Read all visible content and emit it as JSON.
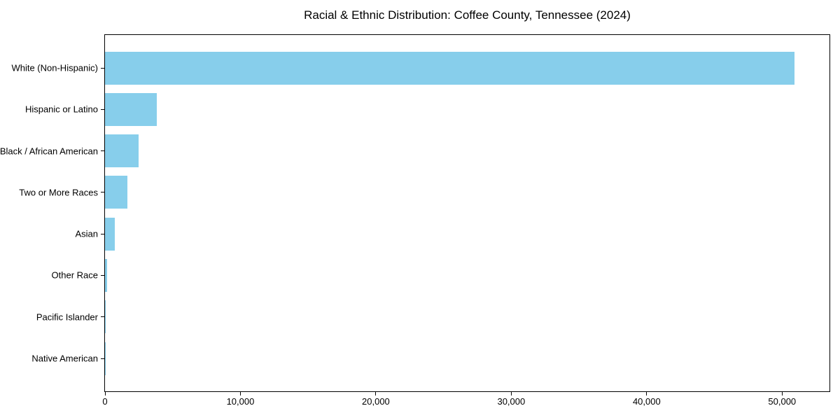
{
  "chart_data": {
    "type": "bar",
    "orientation": "horizontal",
    "title": "Racial & Ethnic Distribution: Coffee County, Tennessee (2024)",
    "categories": [
      "White (Non-Hispanic)",
      "Hispanic or Latino",
      "Black / African American",
      "Two or More Races",
      "Asian",
      "Other Race",
      "Pacific Islander",
      "Native American"
    ],
    "values": [
      50900,
      3800,
      2500,
      1650,
      720,
      150,
      30,
      20
    ],
    "xlabel": "",
    "ylabel": "",
    "xlim": [
      0,
      53500
    ],
    "xticks": [
      0,
      10000,
      20000,
      30000,
      40000,
      50000
    ],
    "xtick_labels": [
      "0",
      "10,000",
      "20,000",
      "30,000",
      "40,000",
      "50,000"
    ],
    "grid": false,
    "legend": null,
    "bar_color": "#87CEEB",
    "spine_color": "#000000",
    "text_color": "#000000",
    "background_color": "#ffffff"
  }
}
